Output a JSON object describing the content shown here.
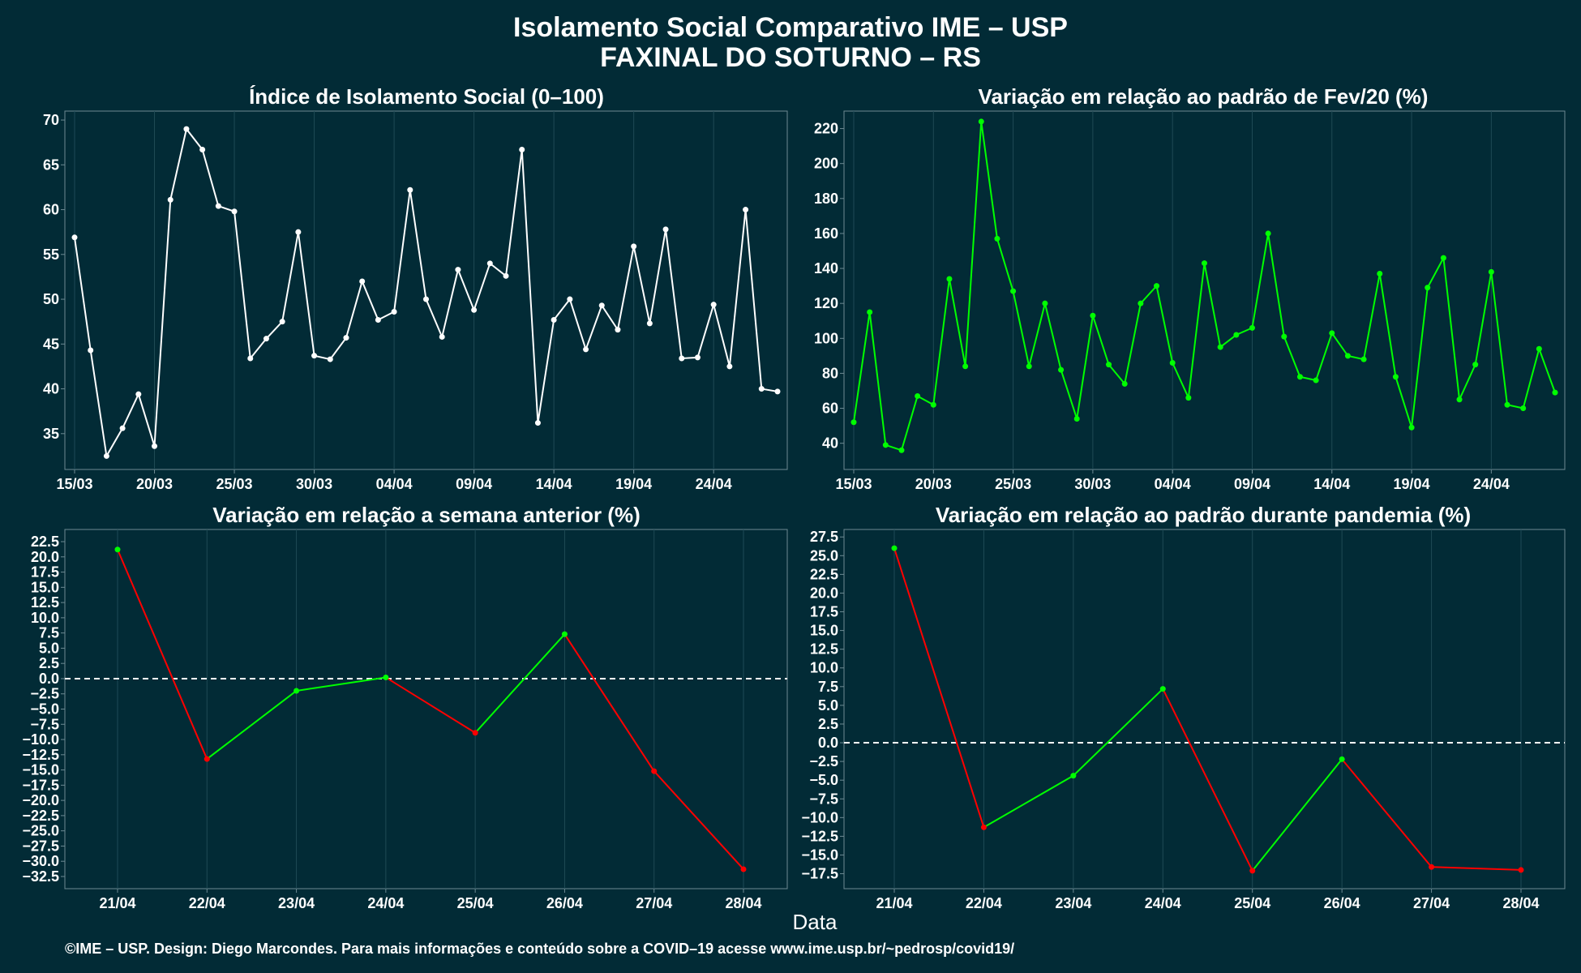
{
  "header": {
    "title_line1": "Isolamento Social Comparativo IME – USP",
    "title_line2": "FAXINAL DO SOTURNO – RS"
  },
  "footer": {
    "x_label": "Data",
    "caption": "©IME – USP. Design: Diego Marcondes. Para mais informações e conteúdo sobre a COVID–19 acesse www.ime.usp.br/~pedrosp/covid19/"
  },
  "colors": {
    "background": "#022b36",
    "white": "#ffffff",
    "green": "#00ff00",
    "red": "#ff0000",
    "grid": "#1f4a55"
  },
  "chart_data": [
    {
      "type": "line",
      "title": "Índice de Isolamento Social (0–100)",
      "x_start": "15/03",
      "x_tick_labels": [
        "15/03",
        "20/03",
        "25/03",
        "30/03",
        "04/04",
        "09/04",
        "14/04",
        "19/04",
        "24/04"
      ],
      "ylim": [
        31,
        71
      ],
      "y_ticks": [
        35,
        40,
        45,
        50,
        55,
        60,
        65,
        70
      ],
      "grid": true,
      "series": [
        {
          "color": "#ffffff",
          "values": [
            56.9,
            44.3,
            32.5,
            35.6,
            39.4,
            33.6,
            61.1,
            69.0,
            66.7,
            60.4,
            59.8,
            43.4,
            45.6,
            47.5,
            57.5,
            43.7,
            43.3,
            45.7,
            52.0,
            47.7,
            48.6,
            62.2,
            50.0,
            45.8,
            53.3,
            48.8,
            54.0,
            52.6,
            66.7,
            36.2,
            47.7,
            50.0,
            44.4,
            49.3,
            46.6,
            55.9,
            47.3,
            57.8,
            43.4,
            43.5,
            49.4,
            42.5,
            60.0,
            40.0,
            39.7
          ]
        }
      ]
    },
    {
      "type": "line",
      "title": "Variação em relação ao padrão de Fev/20 (%)",
      "x_start": "15/03",
      "x_tick_labels": [
        "15/03",
        "20/03",
        "25/03",
        "30/03",
        "04/04",
        "09/04",
        "14/04",
        "19/04",
        "24/04"
      ],
      "ylim": [
        25,
        230
      ],
      "y_ticks": [
        40,
        60,
        80,
        100,
        120,
        140,
        160,
        180,
        200,
        220
      ],
      "grid": true,
      "series": [
        {
          "color": "#00ff00",
          "values": [
            52,
            115,
            39,
            36,
            67,
            62,
            134,
            84,
            224,
            157,
            127,
            84,
            120,
            82,
            54,
            113,
            85,
            74,
            120,
            130,
            86,
            66,
            143,
            95,
            102,
            106,
            160,
            101,
            78,
            76,
            103,
            90,
            88,
            137,
            78,
            49,
            129,
            146,
            65,
            85,
            138,
            62,
            60,
            94,
            69
          ]
        }
      ]
    },
    {
      "type": "line",
      "title": "Variação em relação a semana anterior (%)",
      "categories": [
        "21/04",
        "22/04",
        "23/04",
        "24/04",
        "25/04",
        "26/04",
        "27/04",
        "28/04"
      ],
      "values": [
        21.2,
        -13.2,
        -2.0,
        0.2,
        -8.9,
        7.3,
        -15.2,
        -31.3
      ],
      "ylim": [
        -34.5,
        24.5
      ],
      "y_ticks": [
        22.5,
        20.0,
        17.5,
        15.0,
        12.5,
        10.0,
        7.5,
        5.0,
        2.5,
        0.0,
        -2.5,
        -5.0,
        -7.5,
        -10.0,
        -12.5,
        -15.0,
        -17.5,
        -20.0,
        -22.5,
        -25.0,
        -27.5,
        -30.0,
        -32.5
      ],
      "reference_line": 0,
      "color_rule": "green when increasing, red when decreasing",
      "grid": true
    },
    {
      "type": "line",
      "title": "Variação em relação ao padrão durante pandemia (%)",
      "categories": [
        "21/04",
        "22/04",
        "23/04",
        "24/04",
        "25/04",
        "26/04",
        "27/04",
        "28/04"
      ],
      "values": [
        26.0,
        -11.3,
        -4.4,
        7.2,
        -17.1,
        -2.2,
        -16.6,
        -17.0
      ],
      "ylim": [
        -19.5,
        28.5
      ],
      "y_ticks": [
        27.5,
        25.0,
        22.5,
        20.0,
        17.5,
        15.0,
        12.5,
        10.0,
        7.5,
        5.0,
        2.5,
        0.0,
        -2.5,
        -5.0,
        -7.5,
        -10.0,
        -12.5,
        -15.0,
        -17.5
      ],
      "reference_line": 0,
      "color_rule": "green when increasing, red when decreasing",
      "grid": true
    }
  ]
}
